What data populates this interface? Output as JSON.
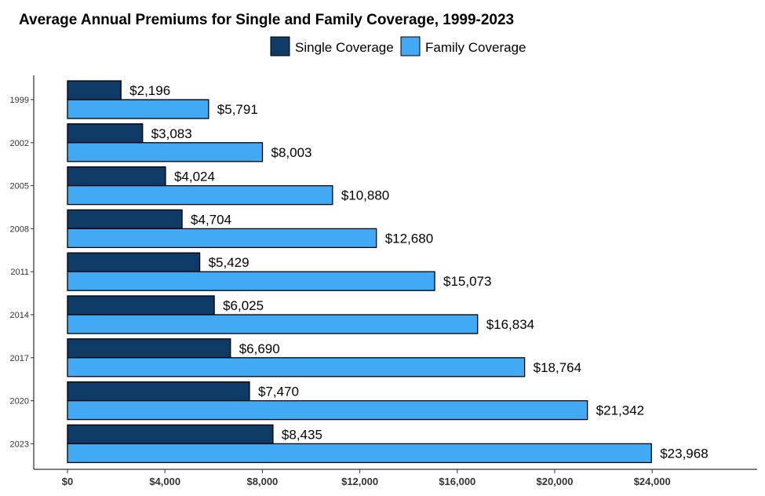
{
  "chart_data": {
    "type": "bar",
    "orientation": "horizontal",
    "title": "Average Annual Premiums for Single and Family Coverage, 1999-2023",
    "categories": [
      "1999",
      "2002",
      "2005",
      "2008",
      "2011",
      "2014",
      "2017",
      "2020",
      "2023"
    ],
    "series": [
      {
        "name": "Single Coverage",
        "color": "#0d3b66",
        "values": [
          2196,
          3083,
          4024,
          4704,
          5429,
          6025,
          6690,
          7470,
          8435
        ],
        "labels": [
          "$2,196",
          "$3,083",
          "$4,024",
          "$4,704",
          "$5,429",
          "$6,025",
          "$6,690",
          "$7,470",
          "$8,435"
        ]
      },
      {
        "name": "Family Coverage",
        "color": "#42a9f5",
        "values": [
          5791,
          8003,
          10880,
          12680,
          15073,
          16834,
          18764,
          21342,
          23968
        ],
        "labels": [
          "$5,791",
          "$8,003",
          "$10,880",
          "$12,680",
          "$15,073",
          "$16,834",
          "$18,764",
          "$21,342",
          "$23,968"
        ]
      }
    ],
    "xticks": [
      0,
      4000,
      8000,
      12000,
      16000,
      20000,
      24000
    ],
    "xtick_labels": [
      "$0",
      "$4,000",
      "$8,000",
      "$12,000",
      "$16,000",
      "$20,000",
      "$24,000"
    ],
    "xlim": [
      -1400,
      28000
    ],
    "legend_position": "top",
    "grid": false
  }
}
